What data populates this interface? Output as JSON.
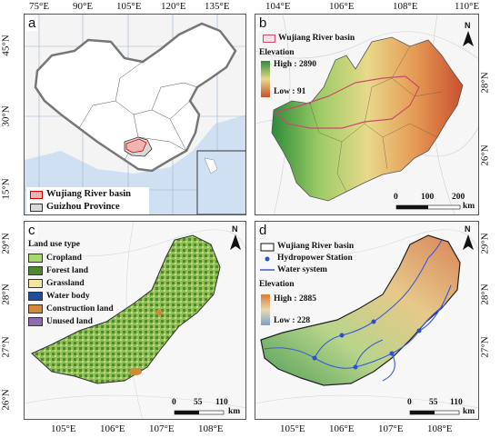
{
  "panels": {
    "a": {
      "label": "a",
      "lon_ticks": [
        "75°E",
        "90°E",
        "105°E",
        "120°E",
        "135°E"
      ],
      "lat_ticks": [
        "45°N",
        "30°N",
        "15°N"
      ],
      "legend": [
        {
          "label": "Wujiang River basin",
          "color": "#f2b3b3"
        },
        {
          "label": "Guizhou Province",
          "color": "#d9d9d9"
        }
      ]
    },
    "b": {
      "label": "b",
      "lon_ticks": [
        "104°E",
        "106°E",
        "108°E",
        "110°E"
      ],
      "lat_ticks": [
        "28°N",
        "26°N"
      ],
      "legend_basin": "Wujiang River basin",
      "elevation_title": "Elevation",
      "high": "High : 2890",
      "low": "Low : 91",
      "scale": {
        "labels": [
          "0",
          "100",
          "200"
        ],
        "unit": "km"
      },
      "north": "N"
    },
    "c": {
      "label": "c",
      "lon_ticks": [
        "105°E",
        "106°E",
        "107°E",
        "108°E"
      ],
      "lat_ticks": [
        "29°N",
        "28°N",
        "27°N",
        "26°N"
      ],
      "legend_title": "Land use type",
      "legend": [
        {
          "label": "Cropland",
          "color": "#a6d96a"
        },
        {
          "label": "Forest land",
          "color": "#4d8a2e"
        },
        {
          "label": "Grassland",
          "color": "#f0e6a0"
        },
        {
          "label": "Water body",
          "color": "#1f4e9e"
        },
        {
          "label": "Construction land",
          "color": "#d08a3a"
        },
        {
          "label": "Unused land",
          "color": "#8e6bb0"
        }
      ],
      "scale": {
        "labels": [
          "0",
          "55",
          "110"
        ],
        "unit": "km"
      },
      "north": "N"
    },
    "d": {
      "label": "d",
      "lon_ticks": [
        "105°E",
        "106°E",
        "107°E",
        "108°E"
      ],
      "lat_ticks": [
        "29°N",
        "28°N",
        "27°N"
      ],
      "legend": [
        {
          "label": "Wujiang River basin"
        },
        {
          "label": "Hydropower Station"
        },
        {
          "label": "Water system"
        }
      ],
      "elevation_title": "Elevation",
      "high": "High : 2885",
      "low": "Low : 228",
      "scale": {
        "labels": [
          "0",
          "55",
          "110"
        ],
        "unit": "km"
      },
      "north": "N"
    }
  }
}
